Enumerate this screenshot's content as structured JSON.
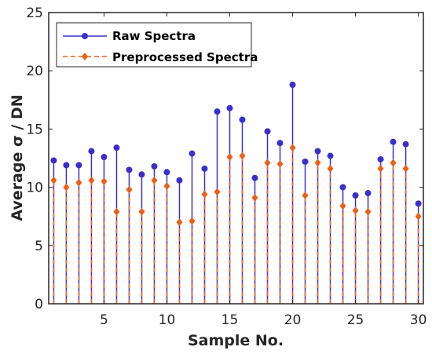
{
  "chart_data": {
    "type": "stem",
    "xlabel": "Sample No.",
    "ylabel": "Average σ / DN",
    "xlim": [
      0.6,
      30.4
    ],
    "ylim": [
      0,
      25
    ],
    "xticks": [
      5,
      10,
      15,
      20,
      25,
      30
    ],
    "yticks": [
      0,
      5,
      10,
      15,
      20,
      25
    ],
    "grid": false,
    "legend_position": "top-left",
    "x": [
      1,
      2,
      3,
      4,
      5,
      6,
      7,
      8,
      9,
      10,
      11,
      12,
      13,
      14,
      15,
      16,
      17,
      18,
      19,
      20,
      21,
      22,
      23,
      24,
      25,
      26,
      27,
      28,
      29,
      30
    ],
    "series": [
      {
        "name": "Raw Spectra",
        "color": "#3b2fc9",
        "marker": "circle",
        "line": "solid",
        "values": [
          12.3,
          11.9,
          11.9,
          13.1,
          12.6,
          13.4,
          11.5,
          11.1,
          11.8,
          11.3,
          10.6,
          12.9,
          11.6,
          16.5,
          16.8,
          15.8,
          10.8,
          14.8,
          13.8,
          18.8,
          12.2,
          13.1,
          12.7,
          10.0,
          9.3,
          9.5,
          12.4,
          13.9,
          13.7,
          8.6
        ]
      },
      {
        "name": "Preprocessed Spectra",
        "color": "#e8611a",
        "marker": "diamond",
        "line": "dashed",
        "values": [
          10.6,
          10.0,
          10.4,
          10.6,
          10.5,
          7.9,
          9.8,
          7.9,
          10.6,
          10.1,
          7.0,
          7.1,
          9.4,
          9.6,
          12.6,
          12.7,
          9.1,
          12.1,
          12.0,
          13.4,
          9.3,
          12.1,
          11.6,
          8.4,
          8.0,
          7.9,
          11.6,
          12.1,
          11.6,
          7.5
        ]
      }
    ]
  }
}
